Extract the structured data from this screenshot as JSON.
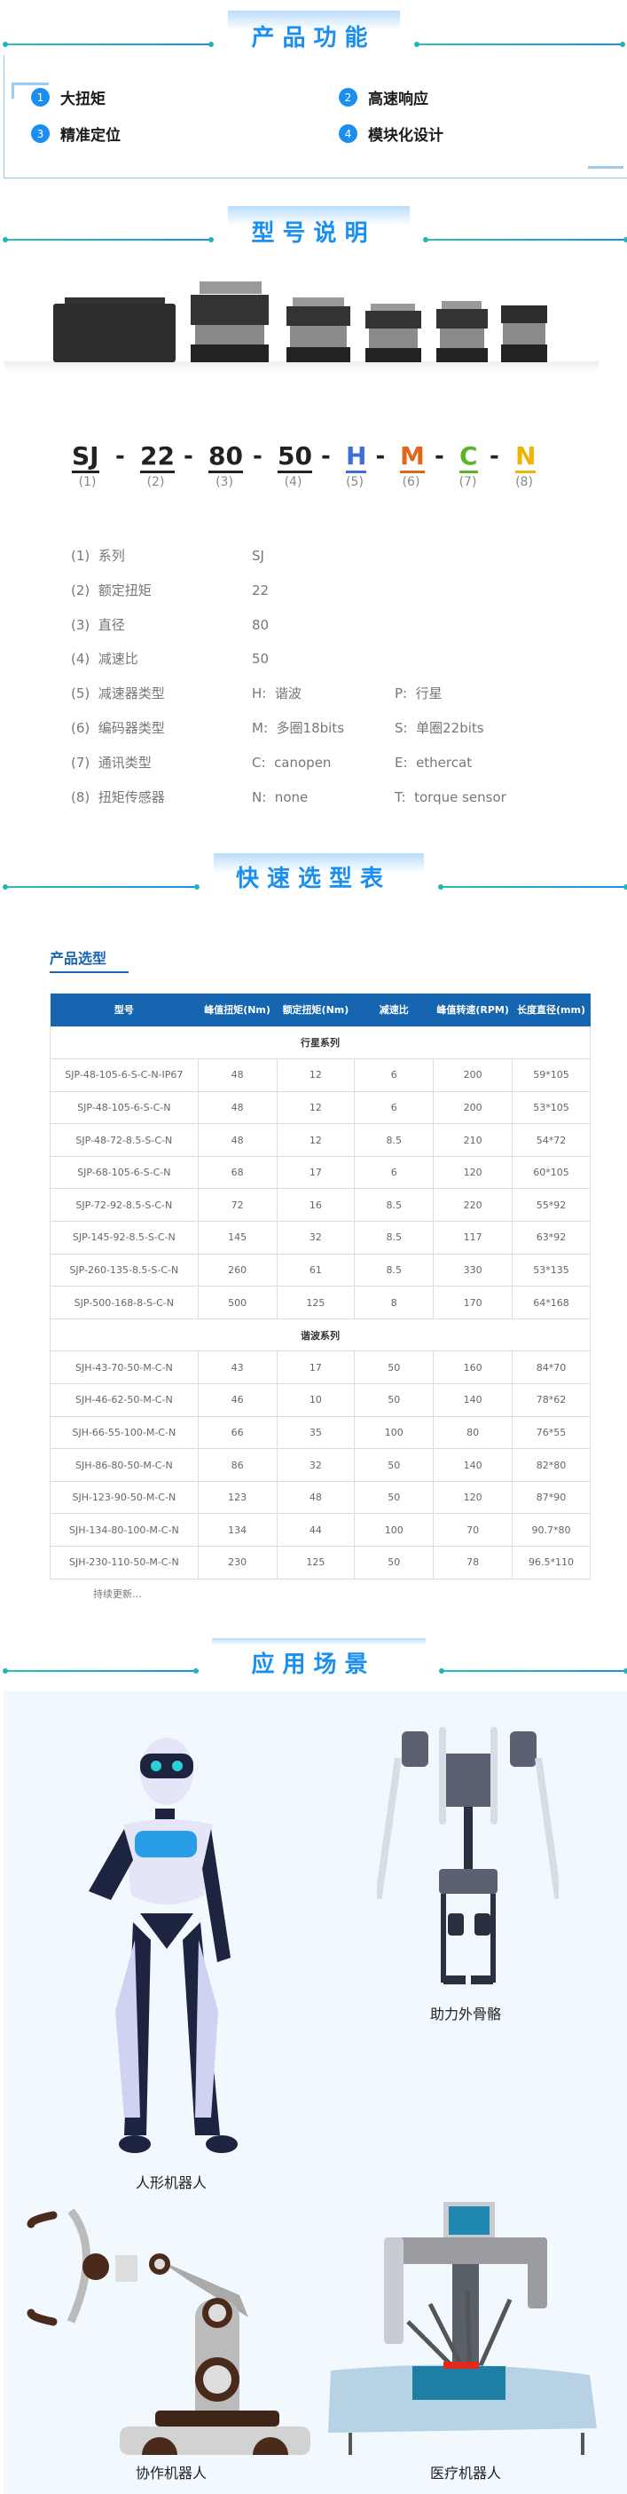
{
  "sections": {
    "features_title": "产品功能",
    "model_title": "型号说明",
    "selection_title": "快速选型表",
    "application_title": "应用场景"
  },
  "features": [
    {
      "num": "1",
      "label": "大扭矩"
    },
    {
      "num": "2",
      "label": "高速响应"
    },
    {
      "num": "3",
      "label": "精准定位"
    },
    {
      "num": "4",
      "label": "模块化设计"
    }
  ],
  "model_code": {
    "segments": [
      {
        "text": "SJ",
        "index": "(1)",
        "color": "#222222"
      },
      {
        "text": "22",
        "index": "(2)",
        "color": "#222222"
      },
      {
        "text": "80",
        "index": "(3)",
        "color": "#222222"
      },
      {
        "text": "50",
        "index": "(4)",
        "color": "#222222"
      },
      {
        "text": "H",
        "index": "(5)",
        "color": "#3a6fd8"
      },
      {
        "text": "M",
        "index": "(6)",
        "color": "#e0661a"
      },
      {
        "text": "C",
        "index": "(7)",
        "color": "#5ab52a"
      },
      {
        "text": "N",
        "index": "(8)",
        "color": "#f0b400"
      }
    ],
    "separator": "-"
  },
  "specs": [
    {
      "label": "(1)  系列",
      "v1": "SJ",
      "v2": ""
    },
    {
      "label": "(2)  额定扭矩",
      "v1": "22",
      "v2": ""
    },
    {
      "label": "(3)  直径",
      "v1": "80",
      "v2": ""
    },
    {
      "label": "(4)  减速比",
      "v1": "50",
      "v2": ""
    },
    {
      "label": "(5)  减速器类型",
      "v1": "H:  谐波",
      "v2": "P:  行星"
    },
    {
      "label": "(6)  编码器类型",
      "v1": "M:  多圈18bits",
      "v2": "S:  单圈22bits"
    },
    {
      "label": "(7)  通讯类型",
      "v1": "C:  canopen",
      "v2": "E:  ethercat"
    },
    {
      "label": "(8)  扭矩传感器",
      "v1": "N:  none",
      "v2": "T:  torque sensor"
    }
  ],
  "selection": {
    "heading": "产品选型",
    "columns": [
      "型号",
      "峰值扭矩(Nm)",
      "额定扭矩(Nm)",
      "减速比",
      "峰值转速(RPM)",
      "长度直径(mm)"
    ],
    "groups": [
      {
        "name": "行星系列",
        "rows": [
          [
            "SJP-48-105-6-S-C-N-IP67",
            "48",
            "12",
            "6",
            "200",
            "59*105"
          ],
          [
            "SJP-48-105-6-S-C-N",
            "48",
            "12",
            "6",
            "200",
            "53*105"
          ],
          [
            "SJP-48-72-8.5-S-C-N",
            "48",
            "12",
            "8.5",
            "210",
            "54*72"
          ],
          [
            "SJP-68-105-6-S-C-N",
            "68",
            "17",
            "6",
            "120",
            "60*105"
          ],
          [
            "SJP-72-92-8.5-S-C-N",
            "72",
            "16",
            "8.5",
            "220",
            "55*92"
          ],
          [
            "SJP-145-92-8.5-S-C-N",
            "145",
            "32",
            "8.5",
            "117",
            "63*92"
          ],
          [
            "SJP-260-135-8.5-S-C-N",
            "260",
            "61",
            "8.5",
            "330",
            "53*135"
          ],
          [
            "SJP-500-168-8-S-C-N",
            "500",
            "125",
            "8",
            "170",
            "64*168"
          ]
        ]
      },
      {
        "name": "谐波系列",
        "rows": [
          [
            "SJH-43-70-50-M-C-N",
            "43",
            "17",
            "50",
            "160",
            "84*70"
          ],
          [
            "SJH-46-62-50-M-C-N",
            "46",
            "10",
            "50",
            "140",
            "78*62"
          ],
          [
            "SJH-66-55-100-M-C-N",
            "66",
            "35",
            "100",
            "80",
            "76*55"
          ],
          [
            "SJH-86-80-50-M-C-N",
            "86",
            "32",
            "50",
            "140",
            "82*80"
          ],
          [
            "SJH-123-90-50-M-C-N",
            "123",
            "48",
            "50",
            "120",
            "87*90"
          ],
          [
            "SJH-134-80-100-M-C-N",
            "134",
            "44",
            "100",
            "70",
            "90.7*80"
          ],
          [
            "SJH-230-110-50-M-C-N",
            "230",
            "125",
            "50",
            "78",
            "96.5*110"
          ]
        ]
      }
    ],
    "footnote": "持续更新…"
  },
  "applications": [
    {
      "label": "人形机器人"
    },
    {
      "label": "助力外骨骼"
    },
    {
      "label": "协作机器人"
    },
    {
      "label": "医疗机器人"
    }
  ],
  "colors": {
    "accent": "#1a8ff0",
    "table_header": "#1565b0",
    "app_bg": "#f1f8fe"
  }
}
